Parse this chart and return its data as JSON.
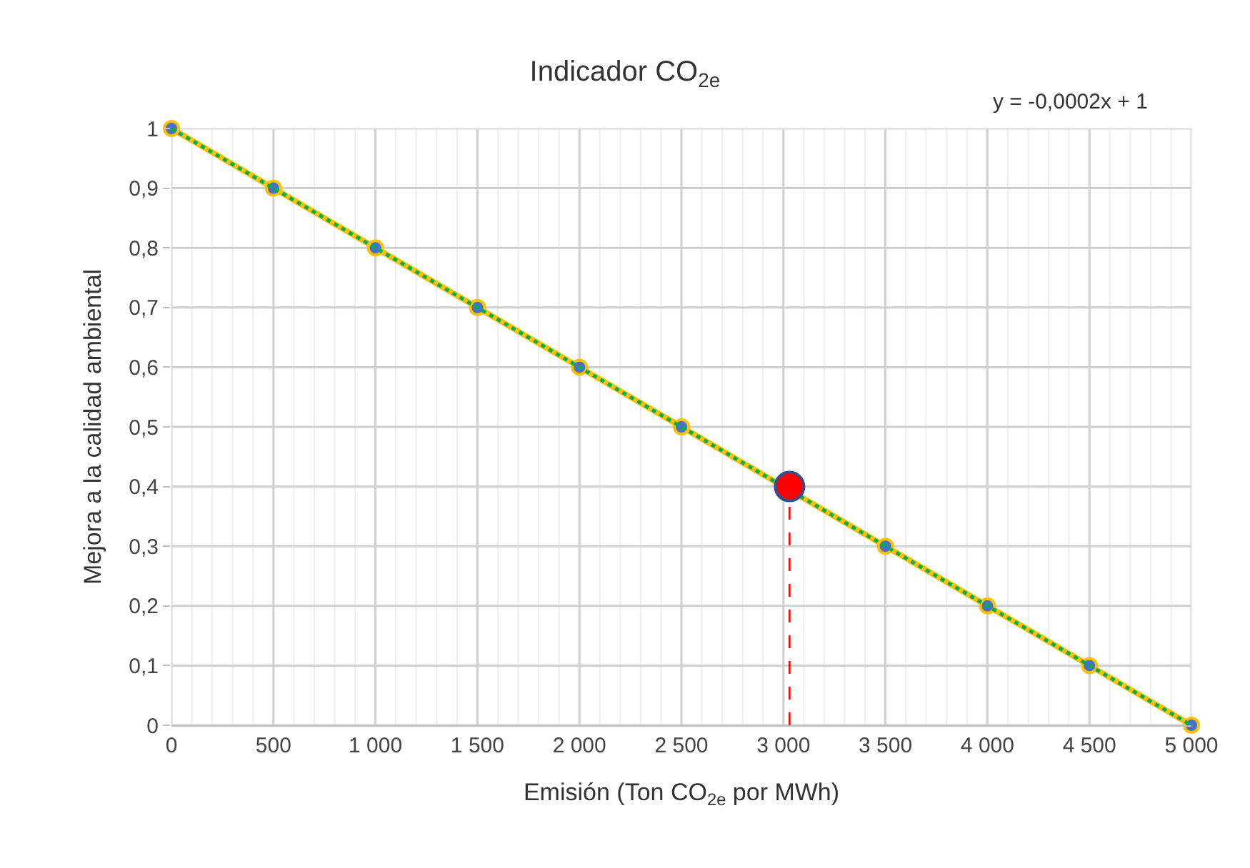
{
  "chart_data": {
    "type": "line",
    "title": "Indicador CO$_{2e}$",
    "xlabel": "Emisión (Ton CO$_{2e}$ por MWh)",
    "ylabel": "Mejora a la calidad ambiental",
    "annotations": [
      "y = -0,0002x + 1"
    ],
    "x": [
      0,
      500,
      1000,
      1500,
      2000,
      2500,
      3000,
      3500,
      4000,
      4500,
      5000
    ],
    "series": [
      {
        "color": "#ffc000",
        "marker": "none",
        "line_style": "solid",
        "x": [
          0,
          500,
          1000,
          1500,
          2000,
          2500,
          3500,
          4000,
          4500,
          5000
        ],
        "values": [
          1,
          0.9,
          0.8,
          0.7,
          0.6,
          0.5,
          0.3,
          0.2,
          0.1,
          0
        ]
      },
      {
        "type": "scatter",
        "color": "#4472c4",
        "marker": "circle",
        "values": [
          1,
          0.9,
          0.8,
          0.7,
          0.6,
          0.5,
          null,
          0.3,
          0.2,
          0.1,
          0
        ]
      },
      {
        "color": "#00b050",
        "marker": "none",
        "line_style": "dotted",
        "x": [
          0,
          5000
        ],
        "values": [
          1,
          0
        ]
      },
      {
        "color": "#ff0000",
        "marker": "none",
        "line_style": "dashed",
        "x": [
          3030,
          3030
        ],
        "values": [
          0,
          0.4
        ]
      },
      {
        "type": "scatter",
        "color": "#ff0000",
        "marker": "circle",
        "x": [
          3030
        ],
        "values": [
          0.4
        ]
      }
    ],
    "xlim": [
      0,
      5000
    ],
    "xticks": [
      0,
      {
        "value": 100,
        "label": null
      },
      {
        "value": 200,
        "label": null
      },
      {
        "value": 300,
        "label": null
      },
      {
        "value": 400,
        "label": null
      },
      500,
      {
        "value": 600,
        "label": null
      },
      {
        "value": 700,
        "label": null
      },
      {
        "value": 800,
        "label": null
      },
      {
        "value": 900,
        "label": null
      },
      {
        "value": 1000,
        "label": "1 000"
      },
      {
        "value": 1100,
        "label": null
      },
      {
        "value": 1200,
        "label": null
      },
      {
        "value": 1300,
        "label": null
      },
      {
        "value": 1400,
        "label": null
      },
      {
        "value": 1500,
        "label": "1 500"
      },
      {
        "value": 1600,
        "label": null
      },
      {
        "value": 1700,
        "label": null
      },
      {
        "value": 1800,
        "label": null
      },
      {
        "value": 1900,
        "label": null
      },
      {
        "value": 2000,
        "label": "2 000"
      },
      {
        "value": 2100,
        "label": null
      },
      {
        "value": 2200,
        "label": null
      },
      {
        "value": 2300,
        "label": null
      },
      {
        "value": 2400,
        "label": null
      },
      {
        "value": 2500,
        "label": "2 500"
      },
      {
        "value": 2600,
        "label": null
      },
      {
        "value": 2700,
        "label": null
      },
      {
        "value": 2800,
        "label": null
      },
      {
        "value": 2900,
        "label": null
      },
      {
        "value": 3000,
        "label": "3 000"
      },
      {
        "value": 3100,
        "label": null
      },
      {
        "value": 3200,
        "label": null
      },
      {
        "value": 3300,
        "label": null
      },
      {
        "value": 3400,
        "label": null
      },
      {
        "value": 3500,
        "label": "3 500"
      },
      {
        "value": 3600,
        "label": null
      },
      {
        "value": 3700,
        "label": null
      },
      {
        "value": 3800,
        "label": null
      },
      {
        "value": 3900,
        "label": null
      },
      {
        "value": 4000,
        "label": "4 000"
      },
      {
        "value": 4100,
        "label": null
      },
      {
        "value": 4200,
        "label": null
      },
      {
        "value": 4300,
        "label": null
      },
      {
        "value": 4400,
        "label": null
      },
      {
        "value": 4500,
        "label": "4 500"
      },
      {
        "value": 4600,
        "label": null
      },
      {
        "value": 4700,
        "label": null
      },
      {
        "value": 4800,
        "label": null
      },
      {
        "value": 4900,
        "label": null
      },
      {
        "value": 5000,
        "label": "5 000"
      }
    ],
    "ylim": [
      0,
      1
    ],
    "yticks": [
      0,
      {
        "value": 0.1,
        "label": "0,1"
      },
      {
        "value": 0.2,
        "label": "0,2"
      },
      {
        "value": 0.3,
        "label": "0,3"
      },
      {
        "value": 0.4,
        "label": "0,4"
      },
      {
        "value": 0.5,
        "label": "0,5"
      },
      {
        "value": 0.6,
        "label": "0,6"
      },
      {
        "value": 0.7,
        "label": "0,7"
      },
      {
        "value": 0.8,
        "label": "0,8"
      },
      {
        "value": 0.9,
        "label": "0,9"
      },
      1
    ],
    "grid": true
  }
}
